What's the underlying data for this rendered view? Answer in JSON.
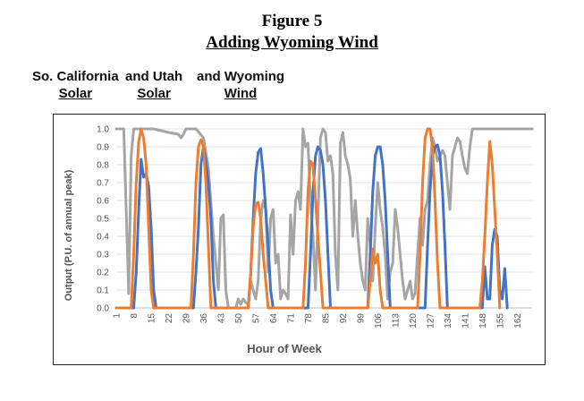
{
  "figure": {
    "number": "Figure 5",
    "subtitle": "Adding Wyoming Wind"
  },
  "legend_labels": [
    {
      "line1": "So. California",
      "line2": "Solar"
    },
    {
      "line1": "and Utah",
      "line2": "Solar"
    },
    {
      "line1": "and Wyoming",
      "line2": "Wind"
    }
  ],
  "chart_data": {
    "type": "line",
    "xlabel": "Hour of Week",
    "ylabel": "Output (P.U. of annual peak)",
    "xlim": [
      1,
      168
    ],
    "ylim": [
      0,
      1.0
    ],
    "y_ticks": [
      "0.0",
      "0.1",
      "0.2",
      "0.3",
      "0.4",
      "0.5",
      "0.6",
      "0.7",
      "0.8",
      "0.9",
      "1.0"
    ],
    "x_ticks": [
      1,
      8,
      15,
      22,
      29,
      36,
      43,
      50,
      57,
      64,
      71,
      78,
      85,
      92,
      99,
      106,
      113,
      120,
      127,
      134,
      141,
      148,
      155,
      162
    ],
    "grid": "horizontal",
    "colors": {
      "so_cal": "#4472c4",
      "utah": "#ed7d31",
      "wyoming": "#a5a5a5"
    },
    "series": [
      {
        "name": "So. California Solar",
        "color": "#4472c4",
        "points": [
          [
            1,
            0
          ],
          [
            8,
            0
          ],
          [
            9,
            0.2
          ],
          [
            10,
            0.55
          ],
          [
            11,
            0.83
          ],
          [
            12,
            0.73
          ],
          [
            13,
            0.75
          ],
          [
            14,
            0.68
          ],
          [
            15,
            0.45
          ],
          [
            16,
            0.1
          ],
          [
            17,
            0
          ],
          [
            32,
            0
          ],
          [
            33,
            0.2
          ],
          [
            34,
            0.45
          ],
          [
            35,
            0.8
          ],
          [
            36,
            0.9
          ],
          [
            37,
            0.82
          ],
          [
            38,
            0.7
          ],
          [
            39,
            0.5
          ],
          [
            40,
            0.15
          ],
          [
            41,
            0
          ],
          [
            54,
            0
          ],
          [
            55,
            0.2
          ],
          [
            56,
            0.5
          ],
          [
            57,
            0.75
          ],
          [
            58,
            0.87
          ],
          [
            59,
            0.89
          ],
          [
            60,
            0.75
          ],
          [
            61,
            0.55
          ],
          [
            62,
            0.35
          ],
          [
            63,
            0.1
          ],
          [
            64,
            0
          ],
          [
            78,
            0
          ],
          [
            79,
            0.3
          ],
          [
            80,
            0.65
          ],
          [
            81,
            0.85
          ],
          [
            82,
            0.9
          ],
          [
            83,
            0.88
          ],
          [
            84,
            0.8
          ],
          [
            85,
            0.6
          ],
          [
            86,
            0.3
          ],
          [
            87,
            0
          ],
          [
            102,
            0
          ],
          [
            103,
            0.3
          ],
          [
            104,
            0.65
          ],
          [
            105,
            0.85
          ],
          [
            106,
            0.9
          ],
          [
            107,
            0.9
          ],
          [
            108,
            0.8
          ],
          [
            109,
            0.6
          ],
          [
            110,
            0.3
          ],
          [
            111,
            0
          ],
          [
            125,
            0
          ],
          [
            126,
            0.35
          ],
          [
            127,
            0.65
          ],
          [
            128,
            0.85
          ],
          [
            129,
            0.9
          ],
          [
            130,
            0.91
          ],
          [
            131,
            0.85
          ],
          [
            132,
            0.65
          ],
          [
            133,
            0.35
          ],
          [
            134,
            0
          ],
          [
            148,
            0
          ],
          [
            149,
            0.23
          ],
          [
            150,
            0.05
          ],
          [
            151,
            0.05
          ],
          [
            152,
            0.35
          ],
          [
            153,
            0.44
          ],
          [
            154,
            0.4
          ],
          [
            155,
            0.1
          ],
          [
            156,
            0.05
          ],
          [
            157,
            0.22
          ],
          [
            158,
            0
          ]
        ]
      },
      {
        "name": "Utah Solar",
        "color": "#ed7d31",
        "points": [
          [
            1,
            0
          ],
          [
            7,
            0
          ],
          [
            8,
            0.3
          ],
          [
            9,
            0.7
          ],
          [
            10,
            0.93
          ],
          [
            11,
            1.0
          ],
          [
            12,
            0.95
          ],
          [
            13,
            0.8
          ],
          [
            14,
            0.45
          ],
          [
            15,
            0.1
          ],
          [
            16,
            0
          ],
          [
            31,
            0
          ],
          [
            32,
            0.3
          ],
          [
            33,
            0.7
          ],
          [
            34,
            0.9
          ],
          [
            35,
            0.94
          ],
          [
            36,
            0.9
          ],
          [
            37,
            0.7
          ],
          [
            38,
            0.35
          ],
          [
            39,
            0
          ],
          [
            54,
            0
          ],
          [
            55,
            0.2
          ],
          [
            56,
            0.45
          ],
          [
            57,
            0.58
          ],
          [
            58,
            0.59
          ],
          [
            59,
            0.5
          ],
          [
            60,
            0.3
          ],
          [
            61,
            0.15
          ],
          [
            62,
            0
          ],
          [
            76,
            0
          ],
          [
            77,
            0.25
          ],
          [
            78,
            0.65
          ],
          [
            79,
            0.82
          ],
          [
            80,
            0.8
          ],
          [
            81,
            0.6
          ],
          [
            82,
            0.4
          ],
          [
            83,
            0.2
          ],
          [
            84,
            0
          ],
          [
            102,
            0
          ],
          [
            103,
            0.15
          ],
          [
            104,
            0.33
          ],
          [
            105,
            0.25
          ],
          [
            106,
            0.3
          ],
          [
            107,
            0.1
          ],
          [
            108,
            0
          ],
          [
            122,
            0
          ],
          [
            123,
            0.3
          ],
          [
            124,
            0.7
          ],
          [
            125,
            0.95
          ],
          [
            126,
            1.0
          ],
          [
            127,
            1.0
          ],
          [
            128,
            0.9
          ],
          [
            129,
            0.6
          ],
          [
            130,
            0.25
          ],
          [
            131,
            0
          ],
          [
            147,
            0
          ],
          [
            148,
            0.15
          ],
          [
            149,
            0.4
          ],
          [
            150,
            0.7
          ],
          [
            151,
            0.93
          ],
          [
            152,
            0.8
          ],
          [
            153,
            0.55
          ],
          [
            154,
            0.3
          ],
          [
            155,
            0
          ]
        ]
      },
      {
        "name": "Wyoming Wind",
        "color": "#a5a5a5",
        "points": [
          [
            1,
            1.0
          ],
          [
            4,
            1.0
          ],
          [
            5,
            0.55
          ],
          [
            6,
            0.08
          ],
          [
            7,
            0.85
          ],
          [
            8,
            1.0
          ],
          [
            16,
            1.0
          ],
          [
            22,
            0.98
          ],
          [
            26,
            0.97
          ],
          [
            27,
            0.95
          ],
          [
            28,
            0.97
          ],
          [
            29,
            1.0
          ],
          [
            33,
            1.0
          ],
          [
            36,
            0.95
          ],
          [
            38,
            0.78
          ],
          [
            40,
            0.4
          ],
          [
            42,
            0.1
          ],
          [
            43,
            0.5
          ],
          [
            44,
            0.52
          ],
          [
            45,
            0.1
          ],
          [
            46,
            0
          ],
          [
            49,
            0
          ],
          [
            50,
            0.05
          ],
          [
            51,
            0.02
          ],
          [
            52,
            0.05
          ],
          [
            53,
            0.03
          ],
          [
            54,
            0.02
          ],
          [
            55,
            0.15
          ],
          [
            56,
            0.1
          ],
          [
            57,
            0.05
          ],
          [
            58,
            0.15
          ],
          [
            59,
            0.5
          ],
          [
            60,
            0.6
          ],
          [
            61,
            0.55
          ],
          [
            62,
            0.2
          ],
          [
            63,
            0.5
          ],
          [
            64,
            0.55
          ],
          [
            65,
            0.25
          ],
          [
            66,
            0.3
          ],
          [
            67,
            0.05
          ],
          [
            68,
            0.1
          ],
          [
            69,
            0.08
          ],
          [
            70,
            0.05
          ],
          [
            71,
            0.52
          ],
          [
            72,
            0.3
          ],
          [
            73,
            0.6
          ],
          [
            74,
            0.65
          ],
          [
            75,
            0.55
          ],
          [
            76,
            1.0
          ],
          [
            77,
            0.9
          ],
          [
            78,
            0.92
          ],
          [
            79,
            0.6
          ],
          [
            80,
            0.4
          ],
          [
            81,
            0.1
          ],
          [
            82,
            0.5
          ],
          [
            83,
            0.95
          ],
          [
            84,
            1.0
          ],
          [
            85,
            0.98
          ],
          [
            86,
            0.82
          ],
          [
            87,
            0.85
          ],
          [
            88,
            0.75
          ],
          [
            89,
            0.3
          ],
          [
            90,
            0.1
          ],
          [
            91,
            0.92
          ],
          [
            92,
            0.98
          ],
          [
            93,
            0.85
          ],
          [
            94,
            0.8
          ],
          [
            95,
            0.72
          ],
          [
            96,
            0.4
          ],
          [
            97,
            0.6
          ],
          [
            98,
            0.4
          ],
          [
            99,
            0.25
          ],
          [
            100,
            0.15
          ],
          [
            101,
            0.1
          ],
          [
            102,
            0.5
          ],
          [
            103,
            0.35
          ],
          [
            104,
            0.15
          ],
          [
            105,
            0.45
          ],
          [
            106,
            0.7
          ],
          [
            107,
            0.55
          ],
          [
            108,
            0.45
          ],
          [
            109,
            0.3
          ],
          [
            110,
            0.05
          ],
          [
            111,
            0.2
          ],
          [
            112,
            0.25
          ],
          [
            113,
            0.55
          ],
          [
            114,
            0.45
          ],
          [
            115,
            0.3
          ],
          [
            116,
            0.15
          ],
          [
            117,
            0.05
          ],
          [
            118,
            0.1
          ],
          [
            119,
            0.15
          ],
          [
            120,
            0.05
          ],
          [
            121,
            0.08
          ],
          [
            122,
            0.3
          ],
          [
            123,
            0.5
          ],
          [
            124,
            0.35
          ],
          [
            125,
            0.55
          ],
          [
            126,
            0.6
          ],
          [
            127,
            0.8
          ],
          [
            128,
            0.95
          ],
          [
            129,
            0.9
          ],
          [
            130,
            0.82
          ],
          [
            131,
            0.85
          ],
          [
            132,
            0.88
          ],
          [
            133,
            0.85
          ],
          [
            134,
            0.7
          ],
          [
            135,
            0.55
          ],
          [
            136,
            0.85
          ],
          [
            137,
            0.9
          ],
          [
            138,
            0.95
          ],
          [
            139,
            0.93
          ],
          [
            140,
            0.85
          ],
          [
            141,
            0.78
          ],
          [
            142,
            0.75
          ],
          [
            143,
            0.9
          ],
          [
            144,
            1.0
          ],
          [
            168,
            1.0
          ]
        ]
      }
    ]
  }
}
